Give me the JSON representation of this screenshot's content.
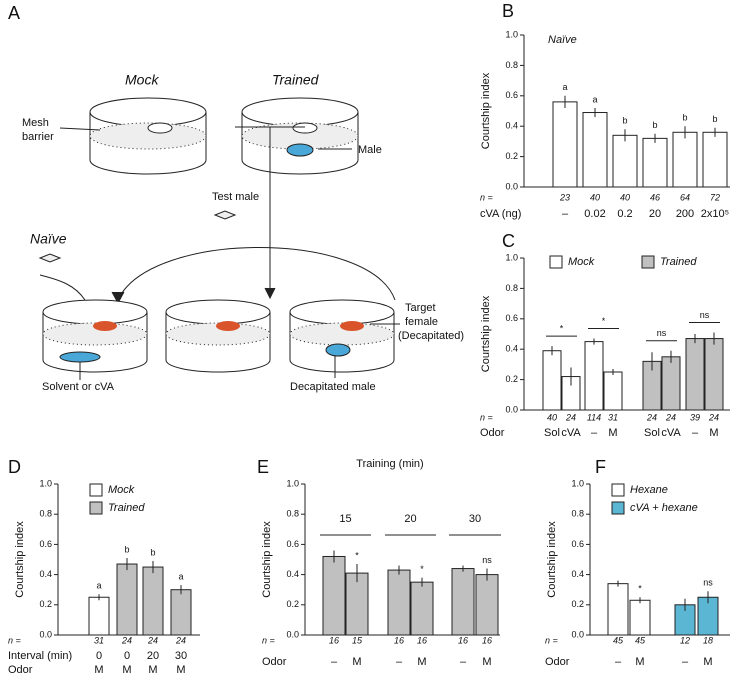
{
  "panel_a": {
    "letter": "A",
    "mock": "Mock",
    "trained": "Trained",
    "mesh": "Mesh",
    "barrier": "barrier",
    "male": "Male",
    "test_male": "Test male",
    "naive": "Naïve",
    "target": "Target",
    "female": "female",
    "decapitated": "(Decapitated)",
    "solvent": "Solvent or cVA",
    "decap_male": "Decapitated male"
  },
  "chart_data": [
    {
      "type": "bar",
      "panel": "B",
      "title": "Naïve",
      "ylabel": "Courtship index",
      "ylim": [
        0,
        1
      ],
      "yticks": [
        {
          "value": 0,
          "label": "0.0"
        },
        {
          "value": 0.2,
          "label": "0.2"
        },
        {
          "value": 0.4,
          "label": "0.4"
        },
        {
          "value": 0.6,
          "label": "0.6"
        },
        {
          "value": 0.8,
          "label": "0.8"
        },
        {
          "value": 1,
          "label": "1.0"
        }
      ],
      "n_label": "n =",
      "n": [
        23,
        40,
        40,
        46,
        64,
        72
      ],
      "category_rows": [
        {
          "label": "cVA (ng)",
          "categories": [
            "–",
            "0.02",
            "0.2",
            "20",
            "200",
            "2x10⁵"
          ]
        }
      ],
      "series": [
        {
          "color": "#ffffff",
          "values": [
            0.56,
            0.49,
            0.34,
            0.32,
            0.36,
            0.36
          ],
          "errors": [
            0.04,
            0.03,
            0.04,
            0.03,
            0.04,
            0.03
          ]
        }
      ],
      "annotations": [
        "a",
        "a",
        "b",
        "b",
        "b",
        "b"
      ]
    },
    {
      "type": "bar",
      "panel": "C",
      "ylabel": "Courtship index",
      "ylim": [
        0,
        1
      ],
      "yticks": [
        {
          "value": 0,
          "label": "0.0"
        },
        {
          "value": 0.2,
          "label": "0.2"
        },
        {
          "value": 0.4,
          "label": "0.4"
        },
        {
          "value": 0.6,
          "label": "0.6"
        },
        {
          "value": 0.8,
          "label": "0.8"
        },
        {
          "value": 1,
          "label": "1.0"
        }
      ],
      "n_label": "n =",
      "n": [
        40,
        24,
        114,
        31,
        24,
        24,
        39,
        24
      ],
      "category_rows": [
        {
          "label": "Odor",
          "categories": [
            "Sol",
            "cVA",
            "–",
            "M",
            "Sol",
            "cVA",
            "–",
            "M"
          ]
        }
      ],
      "series": [
        {
          "name": "Mock",
          "color": "#ffffff",
          "values": [
            0.39,
            0.22,
            0.45,
            0.25,
            null,
            null,
            null,
            null
          ],
          "errors": [
            0.03,
            0.06,
            0.02,
            0.02,
            null,
            null,
            null,
            null
          ]
        },
        {
          "name": "Trained",
          "color": "#c0c0c0",
          "values": [
            null,
            null,
            null,
            null,
            0.32,
            0.35,
            0.47,
            0.47
          ],
          "errors": [
            null,
            null,
            null,
            null,
            0.06,
            0.04,
            0.03,
            0.04
          ]
        }
      ],
      "brackets": [
        "*",
        "*",
        "ns",
        "ns"
      ]
    },
    {
      "type": "bar",
      "panel": "D",
      "ylabel": "Courtship index",
      "ylim": [
        0,
        1
      ],
      "yticks": [
        {
          "value": 0,
          "label": "0.0"
        },
        {
          "value": 0.2,
          "label": "0.2"
        },
        {
          "value": 0.4,
          "label": "0.4"
        },
        {
          "value": 0.6,
          "label": "0.6"
        },
        {
          "value": 0.8,
          "label": "0.8"
        },
        {
          "value": 1,
          "label": "1.0"
        }
      ],
      "n_label": "n =",
      "n": [
        31,
        24,
        24,
        24
      ],
      "category_rows": [
        {
          "label": "Interval (min)",
          "categories": [
            "0",
            "0",
            "20",
            "30"
          ]
        },
        {
          "label": "Odor",
          "categories": [
            "M",
            "M",
            "M",
            "M"
          ]
        }
      ],
      "series": [
        {
          "name": "Mock",
          "color": "#ffffff",
          "values": [
            0.25,
            null,
            null,
            null
          ],
          "errors": [
            0.02,
            null,
            null,
            null
          ]
        },
        {
          "name": "Trained",
          "color": "#c0c0c0",
          "values": [
            null,
            0.47,
            0.45,
            0.3
          ],
          "errors": [
            null,
            0.04,
            0.04,
            0.03
          ]
        }
      ],
      "annotations": [
        "a",
        "b",
        "b",
        "a"
      ]
    },
    {
      "type": "bar",
      "panel": "E",
      "title": "Training (min)",
      "ylabel": "Courtship index",
      "ylim": [
        0,
        1
      ],
      "yticks": [
        {
          "value": 0,
          "label": "0.0"
        },
        {
          "value": 0.2,
          "label": "0.2"
        },
        {
          "value": 0.4,
          "label": "0.4"
        },
        {
          "value": 0.6,
          "label": "0.6"
        },
        {
          "value": 0.8,
          "label": "0.8"
        },
        {
          "value": 1,
          "label": "1.0"
        }
      ],
      "groups": [
        "15",
        "20",
        "30"
      ],
      "n_label": "n =",
      "n": [
        16,
        15,
        16,
        16,
        16,
        16
      ],
      "category_rows": [
        {
          "label": "Odor",
          "categories": [
            "–",
            "M",
            "–",
            "M",
            "–",
            "M"
          ]
        }
      ],
      "series": [
        {
          "color": "#c0c0c0",
          "values": [
            0.52,
            0.41,
            0.43,
            0.35,
            0.44,
            0.4
          ],
          "errors": [
            0.04,
            0.06,
            0.03,
            0.03,
            0.02,
            0.04
          ]
        }
      ],
      "annotations": [
        null,
        "*",
        null,
        "*",
        null,
        "ns"
      ]
    },
    {
      "type": "bar",
      "panel": "F",
      "ylabel": "Courtship index",
      "ylim": [
        0,
        1
      ],
      "yticks": [
        {
          "value": 0,
          "label": "0.0"
        },
        {
          "value": 0.2,
          "label": "0.2"
        },
        {
          "value": 0.4,
          "label": "0.4"
        },
        {
          "value": 0.6,
          "label": "0.6"
        },
        {
          "value": 0.8,
          "label": "0.8"
        },
        {
          "value": 1,
          "label": "1.0"
        }
      ],
      "n_label": "n =",
      "n": [
        45,
        45,
        12,
        18
      ],
      "category_rows": [
        {
          "label": "Odor",
          "categories": [
            "–",
            "M",
            "–",
            "M"
          ]
        }
      ],
      "series": [
        {
          "name": "Hexane",
          "color": "#ffffff",
          "values": [
            0.34,
            0.23,
            null,
            null
          ],
          "errors": [
            0.02,
            0.02,
            null,
            null
          ]
        },
        {
          "name": "cVA + hexane",
          "color": "#5bb6d4",
          "values": [
            null,
            null,
            0.2,
            0.25
          ],
          "errors": [
            null,
            null,
            0.04,
            0.04
          ]
        }
      ],
      "annotations": [
        null,
        "*",
        null,
        "ns"
      ]
    }
  ]
}
